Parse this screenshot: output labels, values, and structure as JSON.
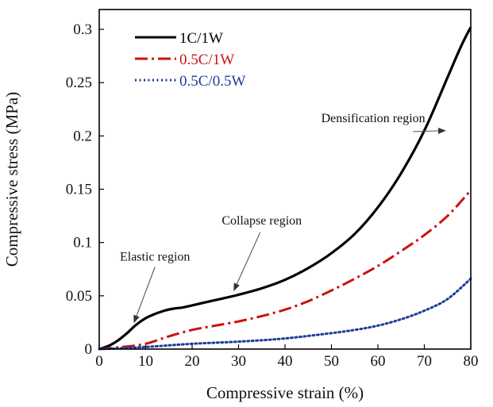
{
  "chart_data": {
    "type": "line",
    "title": "",
    "xlabel": "Compressive strain (%)",
    "ylabel": "Compressive stress (MPa)",
    "xlim": [
      0,
      80
    ],
    "ylim": [
      0,
      0.32
    ],
    "xticks": [
      0,
      10,
      20,
      30,
      40,
      50,
      60,
      70,
      80
    ],
    "yticks": [
      0,
      0.05,
      0.1,
      0.15,
      0.2,
      0.25,
      0.3
    ],
    "ytick_labels": [
      "0",
      "0.05",
      "0.1",
      "0.15",
      "0.2",
      "0.25",
      "0.3"
    ],
    "grid": false,
    "legend_position": "top-left",
    "series": [
      {
        "name": "1C/1W",
        "color": "#000000",
        "dash": "solid",
        "x": [
          0,
          2,
          4,
          6,
          8,
          10,
          12,
          14,
          16,
          18,
          20,
          25,
          30,
          35,
          40,
          45,
          50,
          55,
          60,
          65,
          70,
          75,
          78,
          80
        ],
        "y": [
          0,
          0.003,
          0.008,
          0.015,
          0.023,
          0.029,
          0.033,
          0.036,
          0.038,
          0.039,
          0.041,
          0.046,
          0.051,
          0.057,
          0.065,
          0.076,
          0.09,
          0.108,
          0.133,
          0.165,
          0.205,
          0.255,
          0.285,
          0.302
        ]
      },
      {
        "name": "0.5C/1W",
        "color": "#cc1111",
        "dash": "dashdot",
        "x": [
          0,
          5,
          10,
          15,
          20,
          25,
          30,
          35,
          40,
          45,
          50,
          55,
          60,
          65,
          70,
          75,
          80
        ],
        "y": [
          0,
          0.002,
          0.005,
          0.012,
          0.018,
          0.022,
          0.026,
          0.031,
          0.037,
          0.045,
          0.055,
          0.066,
          0.078,
          0.092,
          0.107,
          0.125,
          0.149
        ]
      },
      {
        "name": "0.5C/0.5W",
        "color": "#1a3d9a",
        "dash": "dotted",
        "x": [
          0,
          10,
          20,
          30,
          40,
          50,
          55,
          60,
          65,
          70,
          75,
          80
        ],
        "y": [
          0,
          0.002,
          0.005,
          0.007,
          0.01,
          0.015,
          0.018,
          0.022,
          0.028,
          0.036,
          0.047,
          0.066
        ]
      }
    ],
    "annotations": [
      {
        "text": "Densification region",
        "x": 59,
        "y": 0.213,
        "arrow_to": [
          74.5,
          0.205
        ]
      },
      {
        "text": "Collapse region",
        "x": 35,
        "y": 0.117,
        "arrow_to": [
          29,
          0.055
        ]
      },
      {
        "text": "Elastic region",
        "x": 12,
        "y": 0.083,
        "arrow_to": [
          7.5,
          0.025
        ]
      }
    ]
  }
}
